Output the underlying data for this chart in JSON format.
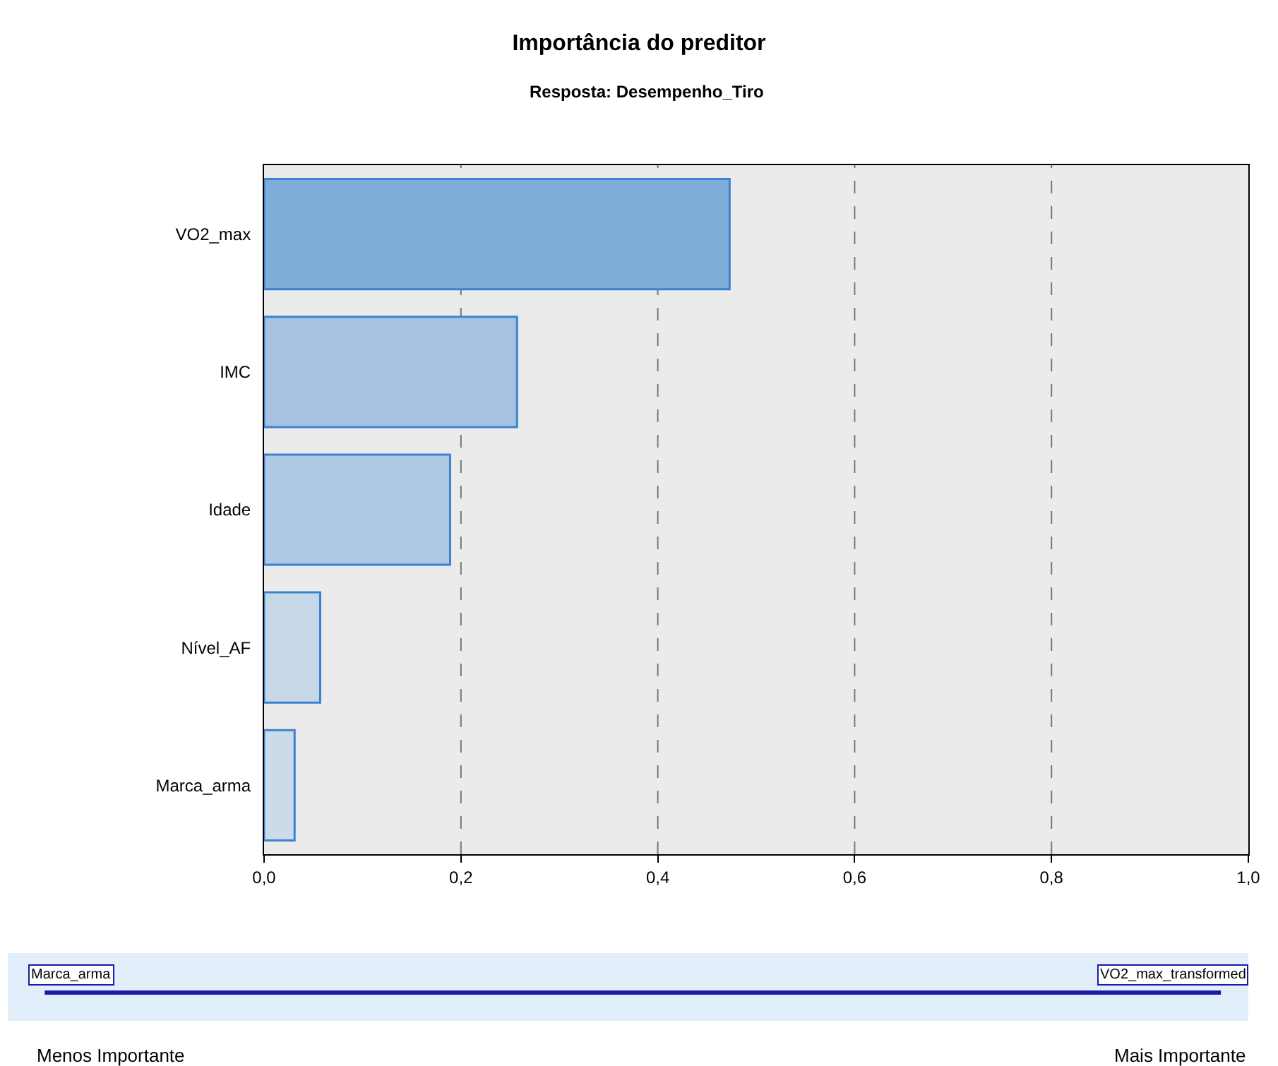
{
  "chart_data": {
    "type": "bar",
    "orientation": "horizontal",
    "title": "Importância do preditor",
    "subtitle": "Resposta: Desempenho_Tiro",
    "categories": [
      "VO2_max",
      "IMC",
      "Idade",
      "Nível_AF",
      "Marca_arma"
    ],
    "values": [
      0.473,
      0.257,
      0.189,
      0.057,
      0.031
    ],
    "colors": [
      "#7faedb",
      "#a6c2e0",
      "#b0c9e3",
      "#c6d7e8",
      "#cbdbe9"
    ],
    "xlim": [
      0,
      1
    ],
    "xticks": [
      {
        "value": 0,
        "label": "0,0"
      },
      {
        "value": 0.2,
        "label": "0,2"
      },
      {
        "value": 0.4,
        "label": "0,4"
      },
      {
        "value": 0.6,
        "label": "0,6"
      },
      {
        "value": 0.8,
        "label": "0,8"
      },
      {
        "value": 1,
        "label": "1,0"
      }
    ],
    "grid": "x",
    "annotations": [
      "Marca_arma",
      "VO2_max_transformed",
      "Menos Importante",
      "Mais Importante"
    ]
  }
}
